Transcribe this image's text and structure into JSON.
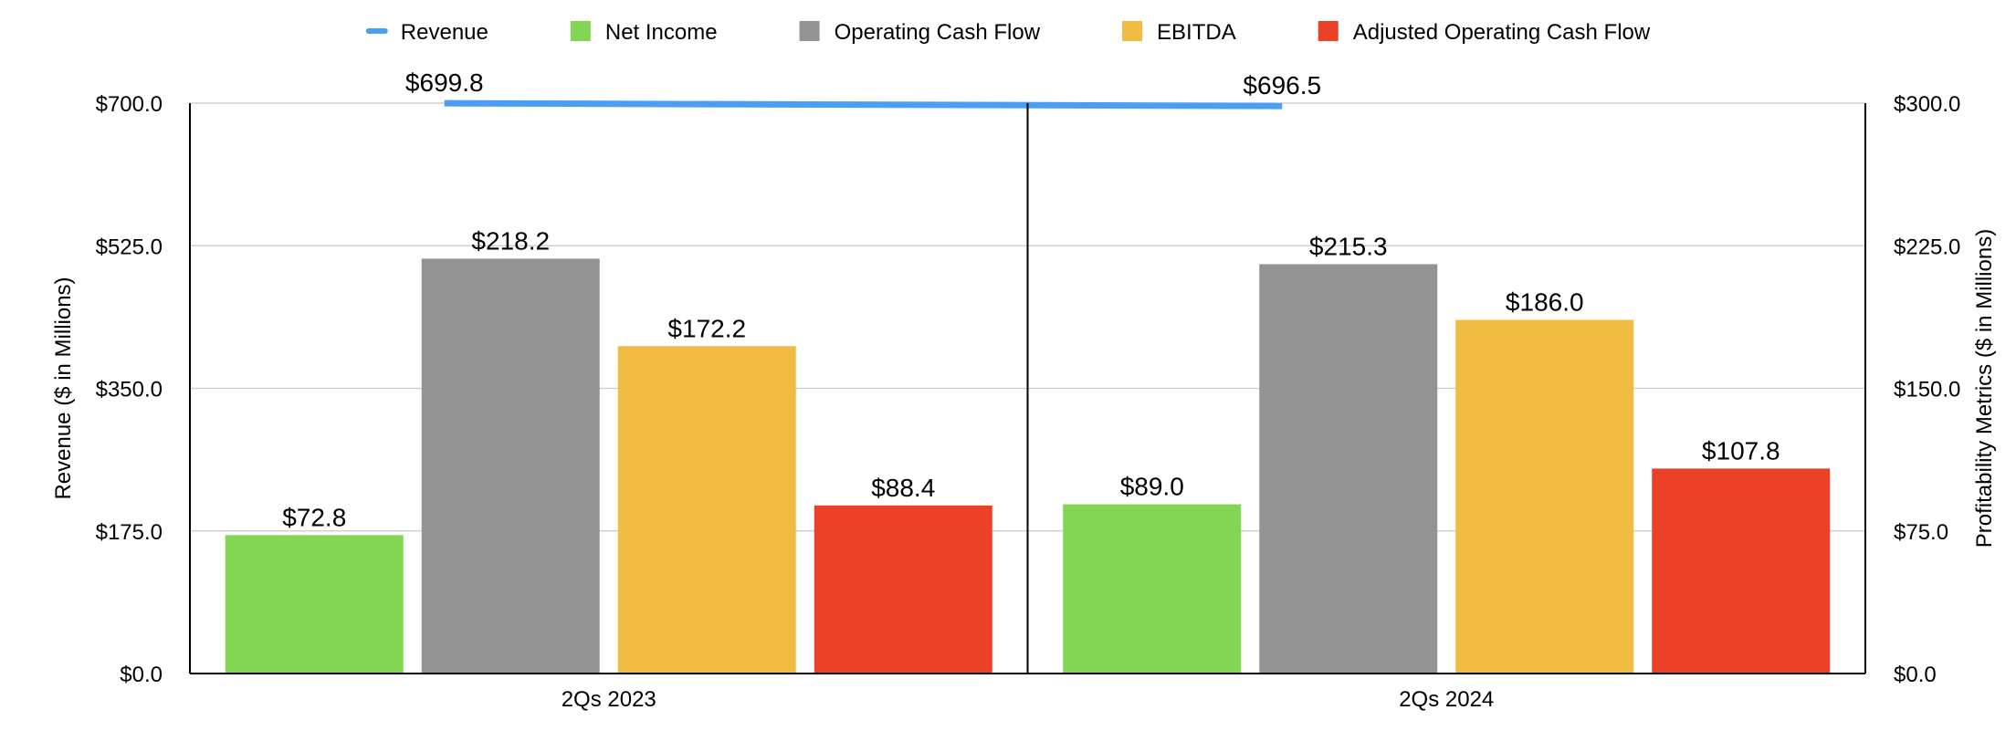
{
  "chart_data": {
    "type": "bar",
    "categories": [
      "2Qs 2023",
      "2Qs 2024"
    ],
    "y_left": {
      "label": "Revenue ($ in Millions)",
      "range": [
        0,
        700
      ],
      "ticks": [
        0,
        175,
        350,
        525,
        700
      ],
      "tick_labels": [
        "$0.0",
        "$175.0",
        "$350.0",
        "$525.0",
        "$700.0"
      ]
    },
    "y_right": {
      "label": "Profitability Metrics ($ in Millions)",
      "range": [
        0,
        300
      ],
      "ticks": [
        0,
        75,
        150,
        225,
        300
      ],
      "tick_labels": [
        "$0.0",
        "$75.0",
        "$150.0",
        "$225.0",
        "$300.0"
      ]
    },
    "grid": true,
    "legend_position": "top-center",
    "series": [
      {
        "name": "Revenue",
        "kind": "line",
        "axis": "left",
        "color": "#4a9ff5",
        "values": [
          699.8,
          696.5
        ],
        "labels": [
          "$699.8",
          "$696.5"
        ]
      },
      {
        "name": "Net Income",
        "kind": "bar",
        "axis": "right",
        "color": "#82d654",
        "values": [
          72.8,
          89.0
        ],
        "labels": [
          "$72.8",
          "$89.0"
        ]
      },
      {
        "name": "Operating Cash Flow",
        "kind": "bar",
        "axis": "right",
        "color": "#939393",
        "values": [
          218.2,
          215.3
        ],
        "labels": [
          "$218.2",
          "$215.3"
        ]
      },
      {
        "name": "EBITDA",
        "kind": "bar",
        "axis": "right",
        "color": "#f0bd42",
        "values": [
          172.2,
          186.0
        ],
        "labels": [
          "$172.2",
          "$186.0"
        ]
      },
      {
        "name": "Adjusted Operating Cash Flow",
        "kind": "bar",
        "axis": "right",
        "color": "#ea4127",
        "values": [
          88.4,
          107.8
        ],
        "labels": [
          "$88.4",
          "$107.8"
        ]
      }
    ]
  }
}
